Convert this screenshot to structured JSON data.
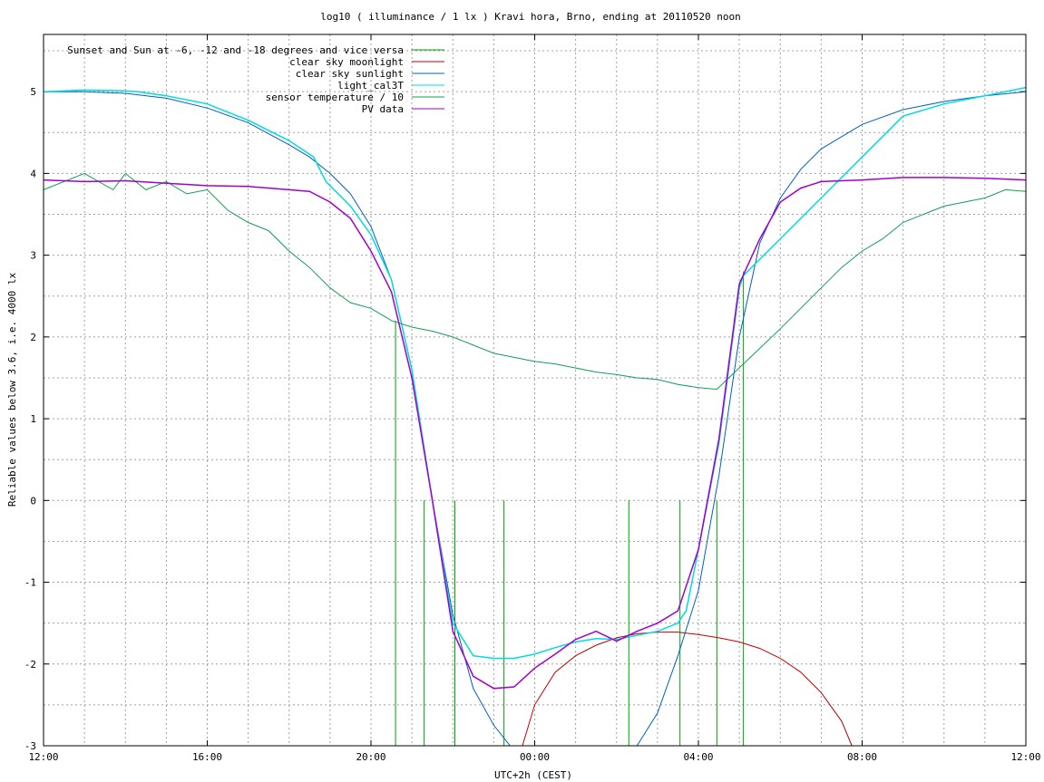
{
  "chart_data": {
    "type": "line",
    "title": "log10 ( illuminance / 1 lx ) Kravi hora, Brno, ending at 20110520 noon",
    "xlabel": "UTC+2h (CEST)",
    "ylabel": "Reliable values below 3.6, i.e. 4000 lx",
    "xlim": [
      12,
      36
    ],
    "ylim": [
      -3,
      5.7
    ],
    "x_unit": "hours since 12:00 (x ticks printed as clock time)",
    "x_ticks": [
      {
        "x": 12,
        "label": "12:00"
      },
      {
        "x": 16,
        "label": "16:00"
      },
      {
        "x": 20,
        "label": "20:00"
      },
      {
        "x": 24,
        "label": "00:00"
      },
      {
        "x": 28,
        "label": "04:00"
      },
      {
        "x": 32,
        "label": "08:00"
      },
      {
        "x": 36,
        "label": "12:00"
      }
    ],
    "y_ticks": [
      {
        "y": 5,
        "label": "5"
      },
      {
        "y": 4,
        "label": "4"
      },
      {
        "y": 3,
        "label": "3"
      },
      {
        "y": 2,
        "label": "2"
      },
      {
        "y": 1,
        "label": "1"
      },
      {
        "y": 0,
        "label": "0"
      },
      {
        "y": -1,
        "label": "-1"
      },
      {
        "y": -2,
        "label": "-2"
      },
      {
        "y": -3,
        "label": "-3"
      }
    ],
    "grid": true,
    "legend_position": "top-left",
    "series": [
      {
        "name": "Sunset and Sun at -6, -12 and -18 degrees and vice versa",
        "color": "#00a000",
        "style": "vertical-impulses",
        "impulses": [
          {
            "x": 20.6,
            "y": 2.2
          },
          {
            "x": 21.3,
            "y": 0
          },
          {
            "x": 22.05,
            "y": 0
          },
          {
            "x": 23.25,
            "y": 0
          },
          {
            "x": 26.3,
            "y": 0
          },
          {
            "x": 27.55,
            "y": 0
          },
          {
            "x": 28.45,
            "y": 0
          },
          {
            "x": 29.1,
            "y": 2.8
          }
        ]
      },
      {
        "name": "clear sky moonlight",
        "color": "#c00000",
        "points": [
          [
            23.7,
            -3.0
          ],
          [
            24.0,
            -2.5
          ],
          [
            24.5,
            -2.1
          ],
          [
            25.0,
            -1.9
          ],
          [
            25.5,
            -1.77
          ],
          [
            26.0,
            -1.68
          ],
          [
            26.5,
            -1.63
          ],
          [
            27.0,
            -1.61
          ],
          [
            27.5,
            -1.61
          ],
          [
            28.0,
            -1.64
          ],
          [
            28.5,
            -1.68
          ],
          [
            29.0,
            -1.73
          ],
          [
            29.5,
            -1.81
          ],
          [
            30.0,
            -1.93
          ],
          [
            30.5,
            -2.1
          ],
          [
            31.0,
            -2.35
          ],
          [
            31.5,
            -2.7
          ],
          [
            31.75,
            -3.0
          ]
        ]
      },
      {
        "name": "clear sky sunlight",
        "color": "#0060c0",
        "points": [
          [
            12,
            5.0
          ],
          [
            13,
            5.0
          ],
          [
            14,
            4.98
          ],
          [
            15,
            4.92
          ],
          [
            16,
            4.8
          ],
          [
            17,
            4.62
          ],
          [
            18,
            4.35
          ],
          [
            18.5,
            4.2
          ],
          [
            19,
            4.0
          ],
          [
            19.5,
            3.75
          ],
          [
            20,
            3.35
          ],
          [
            20.5,
            2.7
          ],
          [
            21,
            1.6
          ],
          [
            21.5,
            0.0
          ],
          [
            22,
            -1.4
          ],
          [
            22.5,
            -2.3
          ],
          [
            23,
            -2.75
          ],
          [
            23.4,
            -3.0
          ],
          [
            26.5,
            -3.0
          ],
          [
            27.0,
            -2.6
          ],
          [
            27.5,
            -1.9
          ],
          [
            28.0,
            -1.1
          ],
          [
            28.5,
            0.3
          ],
          [
            29.0,
            2.0
          ],
          [
            29.5,
            3.15
          ],
          [
            30,
            3.7
          ],
          [
            30.5,
            4.05
          ],
          [
            31,
            4.3
          ],
          [
            32,
            4.6
          ],
          [
            33,
            4.78
          ],
          [
            34,
            4.88
          ],
          [
            35,
            4.95
          ],
          [
            36,
            5.0
          ]
        ]
      },
      {
        "name": "light_cal3T",
        "color": "#00dcdc",
        "points": [
          [
            12,
            5.0
          ],
          [
            13,
            5.02
          ],
          [
            14,
            5.01
          ],
          [
            14.3,
            5.0
          ],
          [
            15,
            4.95
          ],
          [
            16,
            4.85
          ],
          [
            17,
            4.65
          ],
          [
            18,
            4.4
          ],
          [
            18.6,
            4.2
          ],
          [
            18.9,
            3.9
          ],
          [
            19.2,
            3.75
          ],
          [
            19.5,
            3.6
          ],
          [
            20,
            3.25
          ],
          [
            20.5,
            2.7
          ],
          [
            21,
            1.6
          ],
          [
            21.5,
            0.0
          ],
          [
            22,
            -1.5
          ],
          [
            22.5,
            -1.9
          ],
          [
            23,
            -1.93
          ],
          [
            23.5,
            -1.93
          ],
          [
            24,
            -1.88
          ],
          [
            24.5,
            -1.8
          ],
          [
            25,
            -1.73
          ],
          [
            25.5,
            -1.69
          ],
          [
            26,
            -1.7
          ],
          [
            26.5,
            -1.65
          ],
          [
            27,
            -1.6
          ],
          [
            27.5,
            -1.5
          ],
          [
            27.7,
            -1.35
          ],
          [
            28,
            -0.6
          ],
          [
            28.5,
            0.7
          ],
          [
            29,
            2.6
          ],
          [
            29.1,
            2.75
          ],
          [
            30,
            3.2
          ],
          [
            31,
            3.7
          ],
          [
            32,
            4.2
          ],
          [
            33,
            4.7
          ],
          [
            34,
            4.85
          ],
          [
            35,
            4.95
          ],
          [
            36,
            5.05
          ]
        ]
      },
      {
        "name": "sensor temperature / 10",
        "color": "#10a050",
        "points": [
          [
            12,
            3.8
          ],
          [
            13,
            4.0
          ],
          [
            13.7,
            3.8
          ],
          [
            14,
            4.0
          ],
          [
            14.5,
            3.8
          ],
          [
            15,
            3.9
          ],
          [
            15.5,
            3.75
          ],
          [
            16,
            3.8
          ],
          [
            16.5,
            3.55
          ],
          [
            17,
            3.4
          ],
          [
            17.5,
            3.3
          ],
          [
            18,
            3.05
          ],
          [
            18.5,
            2.85
          ],
          [
            19,
            2.6
          ],
          [
            19.5,
            2.42
          ],
          [
            20,
            2.35
          ],
          [
            20.5,
            2.2
          ],
          [
            21,
            2.12
          ],
          [
            21.5,
            2.07
          ],
          [
            22,
            2.0
          ],
          [
            22.5,
            1.9
          ],
          [
            23,
            1.8
          ],
          [
            23.5,
            1.75
          ],
          [
            24,
            1.7
          ],
          [
            24.5,
            1.67
          ],
          [
            25,
            1.62
          ],
          [
            25.5,
            1.57
          ],
          [
            26,
            1.54
          ],
          [
            26.5,
            1.5
          ],
          [
            27,
            1.48
          ],
          [
            27.5,
            1.42
          ],
          [
            28,
            1.38
          ],
          [
            28.45,
            1.36
          ],
          [
            30,
            2.1
          ],
          [
            31,
            2.6
          ],
          [
            31.5,
            2.85
          ],
          [
            32,
            3.05
          ],
          [
            32.5,
            3.2
          ],
          [
            33,
            3.4
          ],
          [
            33.5,
            3.5
          ],
          [
            34,
            3.6
          ],
          [
            34.5,
            3.65
          ],
          [
            35,
            3.7
          ],
          [
            35.5,
            3.8
          ],
          [
            36,
            3.78
          ]
        ]
      },
      {
        "name": "PV data",
        "color": "#a000d0",
        "points": [
          [
            12,
            3.92
          ],
          [
            13,
            3.9
          ],
          [
            14,
            3.91
          ],
          [
            15,
            3.88
          ],
          [
            16,
            3.85
          ],
          [
            17,
            3.84
          ],
          [
            18,
            3.8
          ],
          [
            18.5,
            3.78
          ],
          [
            19,
            3.65
          ],
          [
            19.5,
            3.45
          ],
          [
            20,
            3.05
          ],
          [
            20.5,
            2.55
          ],
          [
            21,
            1.5
          ],
          [
            21.5,
            0.0
          ],
          [
            22,
            -1.6
          ],
          [
            22.5,
            -2.15
          ],
          [
            23,
            -2.3
          ],
          [
            23.5,
            -2.28
          ],
          [
            24,
            -2.05
          ],
          [
            24.5,
            -1.88
          ],
          [
            25,
            -1.7
          ],
          [
            25.5,
            -1.6
          ],
          [
            26,
            -1.72
          ],
          [
            26.5,
            -1.6
          ],
          [
            27,
            -1.5
          ],
          [
            27.5,
            -1.35
          ],
          [
            28,
            -0.6
          ],
          [
            28.5,
            0.75
          ],
          [
            29,
            2.65
          ],
          [
            29.5,
            3.2
          ],
          [
            30,
            3.65
          ],
          [
            30.5,
            3.82
          ],
          [
            31,
            3.9
          ],
          [
            32,
            3.92
          ],
          [
            33,
            3.95
          ],
          [
            34,
            3.95
          ],
          [
            35,
            3.94
          ],
          [
            36,
            3.92
          ]
        ]
      }
    ]
  }
}
